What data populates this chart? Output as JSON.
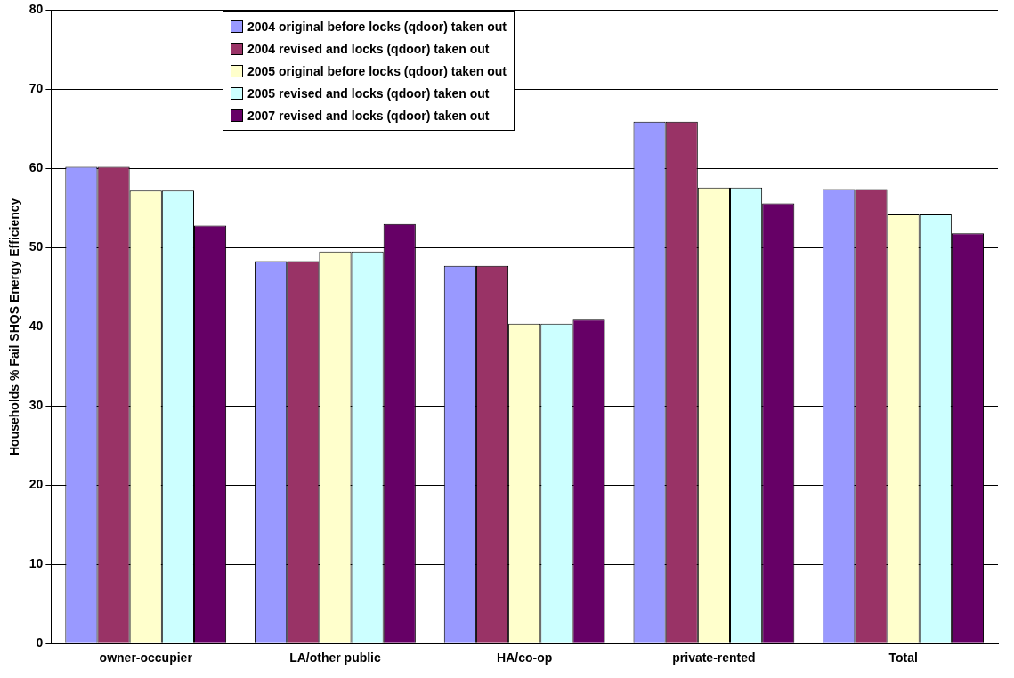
{
  "chart_data": {
    "type": "bar",
    "ylabel": "Households % Fail SHQS Energy Efficiency",
    "categories": [
      "owner-occupier",
      "LA/other public",
      "HA/co-op",
      "private-rented",
      "Total"
    ],
    "series": [
      {
        "name": "2004 original before locks (qdoor) taken out",
        "color": "#9999ff",
        "values": [
          60.2,
          48.3,
          47.7,
          65.9,
          57.4
        ]
      },
      {
        "name": "2004 revised and locks (qdoor) taken out",
        "color": "#993366",
        "values": [
          60.2,
          48.3,
          47.7,
          65.9,
          57.4
        ]
      },
      {
        "name": "2005 original before locks (qdoor) taken out",
        "color": "#ffffcc",
        "values": [
          57.2,
          49.5,
          40.4,
          57.6,
          54.2
        ]
      },
      {
        "name": "2005 revised and locks (qdoor) taken out",
        "color": "#ccffff",
        "values": [
          57.2,
          49.5,
          40.4,
          57.6,
          54.2
        ]
      },
      {
        "name": "2007 revised and locks (qdoor) taken out",
        "color": "#660066",
        "values": [
          52.8,
          53.0,
          40.9,
          55.6,
          51.8
        ]
      }
    ],
    "ylim": [
      0,
      80
    ],
    "yticks": [
      0,
      10,
      20,
      30,
      40,
      50,
      60,
      70,
      80
    ],
    "grid": "y",
    "legend": "top"
  }
}
